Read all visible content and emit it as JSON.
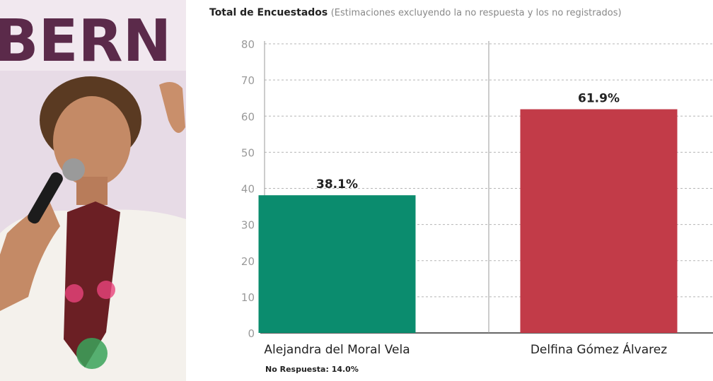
{
  "photo": {
    "banner_text": "BERN",
    "description_icon": "person-speaking-with-microphone"
  },
  "chart_data": {
    "type": "bar",
    "title": "Total de Encuestados",
    "subtitle": "(Estimaciones excluyendo la no respuesta y los no registrados)",
    "categories": [
      "Alejandra del Moral Vela",
      "Delfina Gómez Álvarez"
    ],
    "values": [
      38.1,
      61.9
    ],
    "value_labels": [
      "38.1%",
      "61.9%"
    ],
    "colors": [
      "#0b8c6e",
      "#c23b48"
    ],
    "ylim": [
      0,
      80
    ],
    "yticks": [
      0,
      10,
      20,
      30,
      40,
      50,
      60,
      70,
      80
    ],
    "grid": true,
    "xlabel": "",
    "ylabel": "",
    "footnote": "No Respuesta: 14.0%"
  }
}
